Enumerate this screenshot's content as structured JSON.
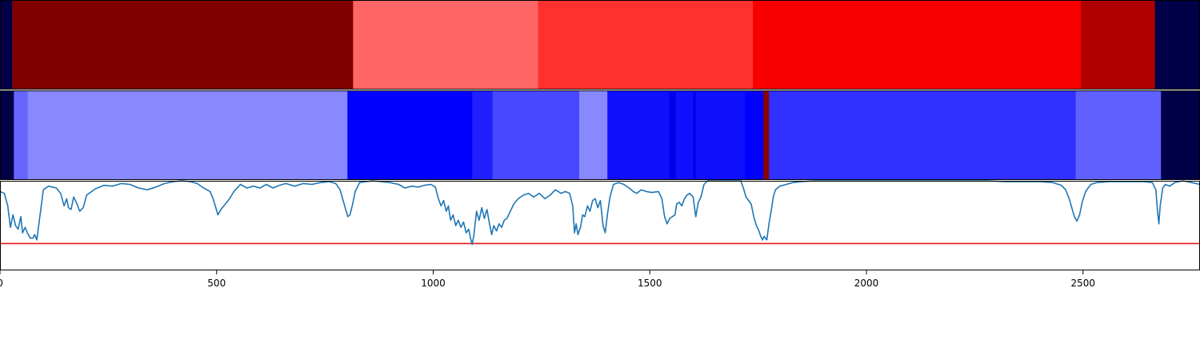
{
  "chart_data": {
    "type": "heatmap",
    "xlim": [
      0,
      2770
    ],
    "xticks": [
      "0",
      "500",
      "1000",
      "1500",
      "2000",
      "2500"
    ],
    "grid": false,
    "colors": {
      "frame": "#000000",
      "signal_line": "#1f77b4",
      "threshold_line": "#e8191a"
    },
    "tracks": [
      {
        "segments": [
          {
            "start": 0,
            "end": 28,
            "color": "#000048"
          },
          {
            "start": 28,
            "end": 815,
            "color": "#800000"
          },
          {
            "start": 815,
            "end": 1242,
            "color": "#ff6666"
          },
          {
            "start": 1242,
            "end": 1738,
            "color": "#ff3030"
          },
          {
            "start": 1738,
            "end": 2495,
            "color": "#f80000"
          },
          {
            "start": 2495,
            "end": 2666,
            "color": "#b00000"
          },
          {
            "start": 2666,
            "end": 2770,
            "color": "#000048"
          }
        ]
      },
      {
        "segments": [
          {
            "start": 0,
            "end": 32,
            "color": "#000048"
          },
          {
            "start": 32,
            "end": 64,
            "color": "#6666ff"
          },
          {
            "start": 64,
            "end": 802,
            "color": "#8888ff"
          },
          {
            "start": 802,
            "end": 1090,
            "color": "#0000ff"
          },
          {
            "start": 1090,
            "end": 1137,
            "color": "#2020ff"
          },
          {
            "start": 1137,
            "end": 1337,
            "color": "#4848ff"
          },
          {
            "start": 1337,
            "end": 1402,
            "color": "#8888ff"
          },
          {
            "start": 1402,
            "end": 1545,
            "color": "#1010ff"
          },
          {
            "start": 1545,
            "end": 1560,
            "color": "#0000e8"
          },
          {
            "start": 1560,
            "end": 1600,
            "color": "#1010ff"
          },
          {
            "start": 1600,
            "end": 1606,
            "color": "#0000e8"
          },
          {
            "start": 1606,
            "end": 1720,
            "color": "#1010ff"
          },
          {
            "start": 1720,
            "end": 1762,
            "color": "#0000ff"
          },
          {
            "start": 1762,
            "end": 1775,
            "color": "#8b0000"
          },
          {
            "start": 1775,
            "end": 2483,
            "color": "#3030ff"
          },
          {
            "start": 2483,
            "end": 2680,
            "color": "#6060ff"
          },
          {
            "start": 2680,
            "end": 2770,
            "color": "#000048"
          }
        ]
      }
    ],
    "signal": {
      "ylim": [
        0,
        1
      ],
      "threshold": 0.3,
      "points": [
        [
          0,
          0.88
        ],
        [
          10,
          0.86
        ],
        [
          18,
          0.72
        ],
        [
          24,
          0.48
        ],
        [
          30,
          0.62
        ],
        [
          36,
          0.5
        ],
        [
          42,
          0.46
        ],
        [
          48,
          0.6
        ],
        [
          52,
          0.42
        ],
        [
          58,
          0.48
        ],
        [
          64,
          0.41
        ],
        [
          70,
          0.36
        ],
        [
          76,
          0.36
        ],
        [
          80,
          0.4
        ],
        [
          85,
          0.34
        ],
        [
          100,
          0.9
        ],
        [
          112,
          0.94
        ],
        [
          130,
          0.92
        ],
        [
          140,
          0.86
        ],
        [
          148,
          0.72
        ],
        [
          154,
          0.8
        ],
        [
          158,
          0.7
        ],
        [
          164,
          0.68
        ],
        [
          170,
          0.82
        ],
        [
          178,
          0.74
        ],
        [
          184,
          0.66
        ],
        [
          192,
          0.7
        ],
        [
          200,
          0.84
        ],
        [
          220,
          0.91
        ],
        [
          240,
          0.95
        ],
        [
          260,
          0.94
        ],
        [
          280,
          0.97
        ],
        [
          300,
          0.96
        ],
        [
          320,
          0.92
        ],
        [
          340,
          0.9
        ],
        [
          360,
          0.93
        ],
        [
          380,
          0.97
        ],
        [
          400,
          0.99
        ],
        [
          420,
          1.0
        ],
        [
          440,
          0.99
        ],
        [
          455,
          0.97
        ],
        [
          470,
          0.92
        ],
        [
          485,
          0.88
        ],
        [
          492,
          0.8
        ],
        [
          497,
          0.72
        ],
        [
          503,
          0.62
        ],
        [
          510,
          0.68
        ],
        [
          520,
          0.74
        ],
        [
          530,
          0.8
        ],
        [
          540,
          0.88
        ],
        [
          555,
          0.96
        ],
        [
          570,
          0.92
        ],
        [
          585,
          0.94
        ],
        [
          600,
          0.92
        ],
        [
          615,
          0.96
        ],
        [
          630,
          0.92
        ],
        [
          645,
          0.95
        ],
        [
          660,
          0.97
        ],
        [
          680,
          0.94
        ],
        [
          700,
          0.97
        ],
        [
          720,
          0.96
        ],
        [
          740,
          0.98
        ],
        [
          760,
          0.99
        ],
        [
          775,
          0.97
        ],
        [
          785,
          0.9
        ],
        [
          792,
          0.78
        ],
        [
          798,
          0.68
        ],
        [
          803,
          0.6
        ],
        [
          808,
          0.62
        ],
        [
          814,
          0.74
        ],
        [
          820,
          0.88
        ],
        [
          830,
          0.98
        ],
        [
          860,
          1.0
        ],
        [
          900,
          0.98
        ],
        [
          920,
          0.96
        ],
        [
          935,
          0.92
        ],
        [
          950,
          0.94
        ],
        [
          965,
          0.93
        ],
        [
          980,
          0.95
        ],
        [
          995,
          0.96
        ],
        [
          1005,
          0.93
        ],
        [
          1012,
          0.8
        ],
        [
          1018,
          0.72
        ],
        [
          1024,
          0.78
        ],
        [
          1030,
          0.66
        ],
        [
          1035,
          0.72
        ],
        [
          1040,
          0.56
        ],
        [
          1046,
          0.62
        ],
        [
          1052,
          0.5
        ],
        [
          1058,
          0.56
        ],
        [
          1064,
          0.48
        ],
        [
          1070,
          0.54
        ],
        [
          1076,
          0.42
        ],
        [
          1082,
          0.46
        ],
        [
          1086,
          0.36
        ],
        [
          1090,
          0.29
        ],
        [
          1094,
          0.4
        ],
        [
          1100,
          0.66
        ],
        [
          1106,
          0.56
        ],
        [
          1112,
          0.7
        ],
        [
          1118,
          0.58
        ],
        [
          1124,
          0.68
        ],
        [
          1130,
          0.52
        ],
        [
          1135,
          0.4
        ],
        [
          1140,
          0.5
        ],
        [
          1146,
          0.44
        ],
        [
          1152,
          0.52
        ],
        [
          1158,
          0.48
        ],
        [
          1164,
          0.56
        ],
        [
          1170,
          0.58
        ],
        [
          1178,
          0.66
        ],
        [
          1186,
          0.74
        ],
        [
          1196,
          0.8
        ],
        [
          1208,
          0.84
        ],
        [
          1220,
          0.86
        ],
        [
          1232,
          0.82
        ],
        [
          1245,
          0.86
        ],
        [
          1258,
          0.8
        ],
        [
          1270,
          0.84
        ],
        [
          1282,
          0.9
        ],
        [
          1295,
          0.86
        ],
        [
          1305,
          0.88
        ],
        [
          1315,
          0.86
        ],
        [
          1322,
          0.72
        ],
        [
          1326,
          0.42
        ],
        [
          1330,
          0.52
        ],
        [
          1334,
          0.4
        ],
        [
          1340,
          0.48
        ],
        [
          1345,
          0.62
        ],
        [
          1350,
          0.6
        ],
        [
          1356,
          0.72
        ],
        [
          1362,
          0.66
        ],
        [
          1368,
          0.78
        ],
        [
          1374,
          0.8
        ],
        [
          1380,
          0.7
        ],
        [
          1386,
          0.78
        ],
        [
          1392,
          0.5
        ],
        [
          1397,
          0.42
        ],
        [
          1402,
          0.62
        ],
        [
          1408,
          0.82
        ],
        [
          1416,
          0.96
        ],
        [
          1428,
          0.98
        ],
        [
          1440,
          0.96
        ],
        [
          1452,
          0.92
        ],
        [
          1462,
          0.88
        ],
        [
          1470,
          0.86
        ],
        [
          1480,
          0.9
        ],
        [
          1492,
          0.88
        ],
        [
          1505,
          0.87
        ],
        [
          1520,
          0.88
        ],
        [
          1528,
          0.8
        ],
        [
          1534,
          0.6
        ],
        [
          1540,
          0.52
        ],
        [
          1546,
          0.58
        ],
        [
          1552,
          0.6
        ],
        [
          1558,
          0.62
        ],
        [
          1562,
          0.74
        ],
        [
          1568,
          0.76
        ],
        [
          1574,
          0.72
        ],
        [
          1580,
          0.8
        ],
        [
          1586,
          0.84
        ],
        [
          1592,
          0.86
        ],
        [
          1600,
          0.82
        ],
        [
          1606,
          0.6
        ],
        [
          1612,
          0.76
        ],
        [
          1618,
          0.82
        ],
        [
          1625,
          0.96
        ],
        [
          1633,
          1.0
        ],
        [
          1660,
          1.0
        ],
        [
          1690,
          1.0
        ],
        [
          1710,
          1.0
        ],
        [
          1716,
          0.92
        ],
        [
          1722,
          0.82
        ],
        [
          1728,
          0.78
        ],
        [
          1734,
          0.74
        ],
        [
          1740,
          0.6
        ],
        [
          1746,
          0.5
        ],
        [
          1752,
          0.44
        ],
        [
          1756,
          0.38
        ],
        [
          1760,
          0.34
        ],
        [
          1764,
          0.38
        ],
        [
          1770,
          0.34
        ],
        [
          1775,
          0.52
        ],
        [
          1780,
          0.66
        ],
        [
          1785,
          0.82
        ],
        [
          1790,
          0.9
        ],
        [
          1800,
          0.94
        ],
        [
          1815,
          0.96
        ],
        [
          1830,
          0.98
        ],
        [
          1850,
          0.99
        ],
        [
          1880,
          1.0
        ],
        [
          1920,
          1.0
        ],
        [
          1960,
          1.0
        ],
        [
          2000,
          1.0
        ],
        [
          2040,
          1.0
        ],
        [
          2080,
          1.0
        ],
        [
          2120,
          1.0
        ],
        [
          2160,
          1.0
        ],
        [
          2200,
          1.0
        ],
        [
          2240,
          1.0
        ],
        [
          2280,
          1.0
        ],
        [
          2320,
          0.99
        ],
        [
          2360,
          0.99
        ],
        [
          2400,
          0.99
        ],
        [
          2430,
          0.98
        ],
        [
          2450,
          0.95
        ],
        [
          2460,
          0.9
        ],
        [
          2468,
          0.8
        ],
        [
          2474,
          0.7
        ],
        [
          2480,
          0.6
        ],
        [
          2486,
          0.55
        ],
        [
          2492,
          0.62
        ],
        [
          2498,
          0.76
        ],
        [
          2506,
          0.88
        ],
        [
          2518,
          0.96
        ],
        [
          2532,
          0.98
        ],
        [
          2560,
          0.99
        ],
        [
          2600,
          0.99
        ],
        [
          2640,
          0.99
        ],
        [
          2660,
          0.98
        ],
        [
          2668,
          0.9
        ],
        [
          2672,
          0.66
        ],
        [
          2675,
          0.52
        ],
        [
          2678,
          0.72
        ],
        [
          2684,
          0.92
        ],
        [
          2690,
          0.96
        ],
        [
          2700,
          0.94
        ],
        [
          2712,
          0.98
        ],
        [
          2730,
          1.0
        ],
        [
          2750,
          0.98
        ],
        [
          2770,
          0.96
        ]
      ]
    }
  }
}
